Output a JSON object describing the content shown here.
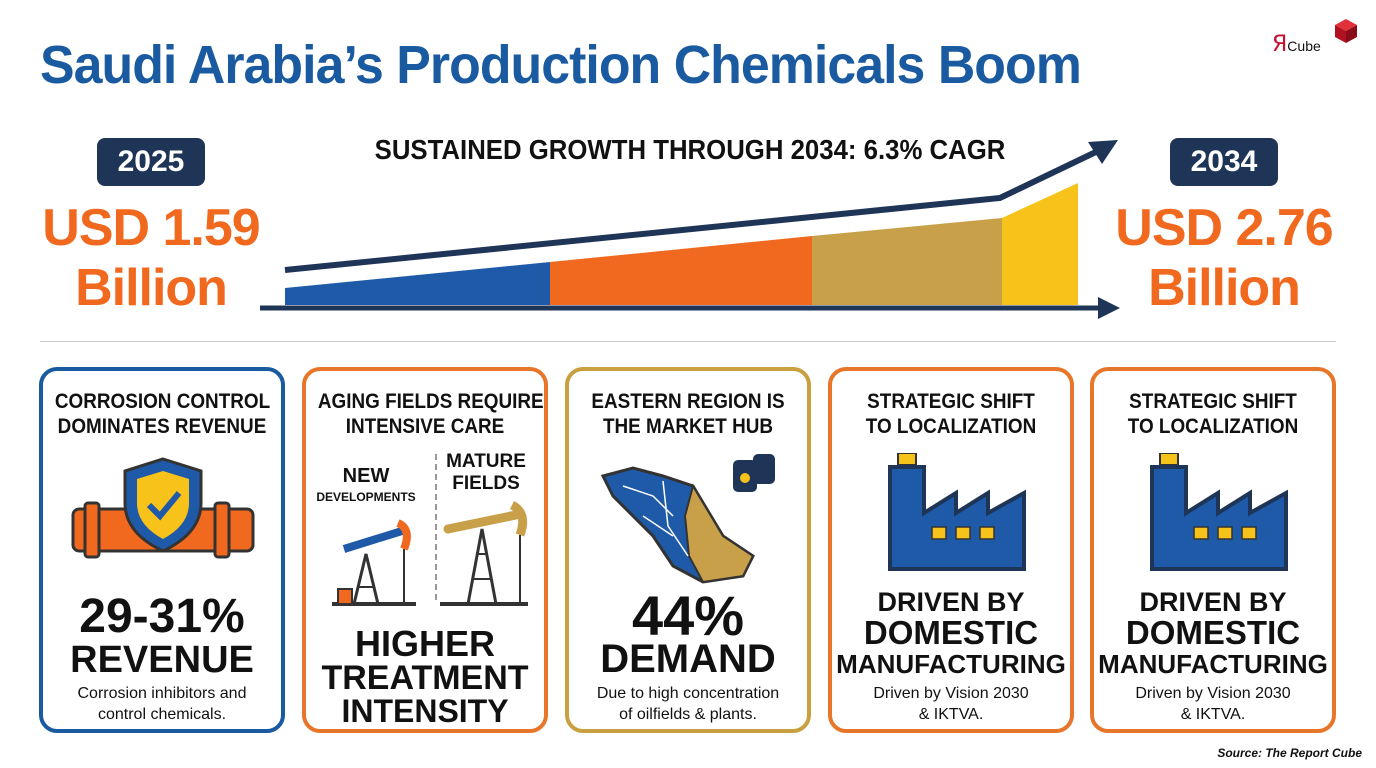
{
  "header": {
    "title": "Saudi Arabia’s Production Chemicals Boom",
    "logo_mark": "Я",
    "logo_text": "Cube"
  },
  "growth": {
    "headline": "SUSTAINED GROWTH THROUGH 2034: 6.3% CAGR",
    "start": {
      "year": "2025",
      "value": "USD 1.59",
      "unit": "Billion"
    },
    "end": {
      "year": "2034",
      "value": "USD 2.76",
      "unit": "Billion"
    }
  },
  "cards": [
    {
      "title": [
        "CORROSION CONTROL",
        "DOMINATES REVENUE"
      ],
      "headline": [
        "29-31%",
        "REVENUE"
      ],
      "note": [
        "Corrosion inhibitors and",
        "control chemicals."
      ]
    },
    {
      "title": [
        "AGING FIELDS REQUIRE",
        "INTENSIVE CARE"
      ],
      "labels": [
        "NEW",
        "DEVELOPMENTS",
        "MATURE",
        "FIELDS"
      ],
      "headline": [
        "HIGHER",
        "TREATMENT",
        "INTENSITY"
      ]
    },
    {
      "title": [
        "EASTERN REGION IS",
        "THE MARKET HUB"
      ],
      "headline": [
        "44%",
        "DEMAND"
      ],
      "note": [
        "Due to high concentration",
        "of oilfields & plants."
      ]
    },
    {
      "title": [
        "STRATEGIC SHIFT",
        "TO LOCALIZATION"
      ],
      "headline": [
        "DRIVEN BY",
        "DOMESTIC",
        "MANUFACTURING"
      ],
      "note": [
        "Driven by Vision 2030",
        "& IKTVA."
      ]
    },
    {
      "title": [
        "STRATEGIC SHIFT",
        "TO LOCALIZATION"
      ],
      "headline": [
        "DRIVEN BY",
        "DOMESTIC",
        "MANUFACTURING"
      ],
      "note": [
        "Driven by Vision 2030",
        "& IKTVA."
      ]
    }
  ],
  "source": "Source: The Report Cube"
}
